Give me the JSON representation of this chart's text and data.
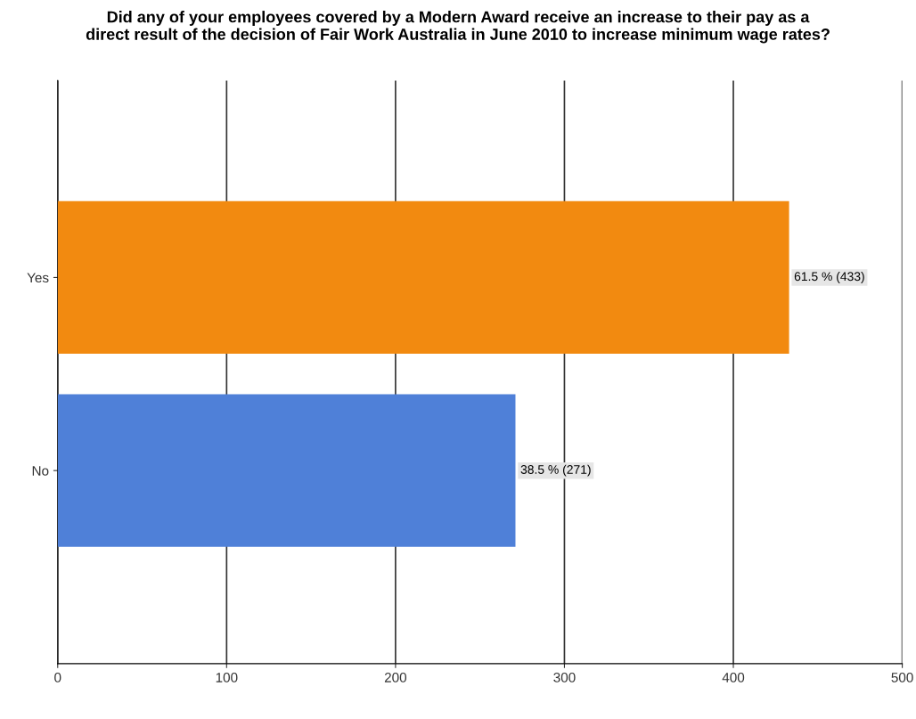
{
  "chart_data": {
    "type": "bar",
    "orientation": "horizontal",
    "title": "Did any of your employees covered by a Modern Award receive an increase to their pay as a\ndirect result of the decision of Fair Work Australia in June 2010 to increase minimum wage rates?",
    "categories": [
      "Yes",
      "No"
    ],
    "values": [
      433,
      271
    ],
    "colors": [
      "#f28a10",
      "#4f80d8"
    ],
    "value_labels": [
      "61.5 % (433)",
      "38.5 % (271)"
    ],
    "xlim": [
      0,
      500
    ],
    "xticks": [
      0,
      100,
      200,
      300,
      400,
      500
    ],
    "grid": "x",
    "legend": false
  }
}
